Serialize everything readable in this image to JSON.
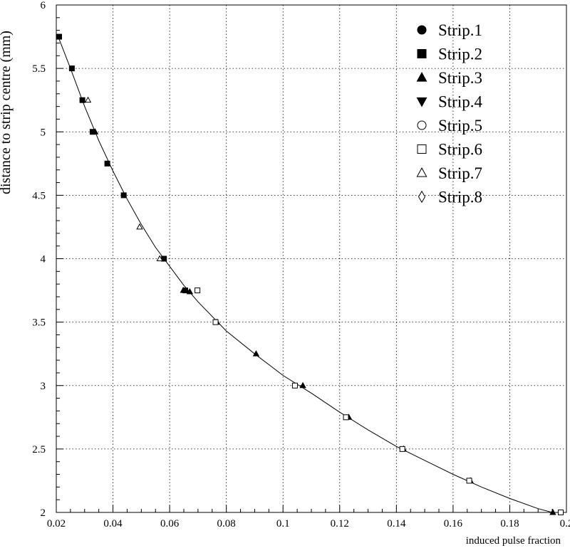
{
  "chart_data": {
    "type": "scatter",
    "xlabel": "induced pulse fraction",
    "ylabel": "distance to strip centre (mm)",
    "xlim": [
      0.02,
      0.2
    ],
    "ylim": [
      2,
      6
    ],
    "x_ticks": [
      "0.02",
      "0.04",
      "0.06",
      "0.08",
      "0.1",
      "0.12",
      "0.14",
      "0.16",
      "0.18",
      "0.2"
    ],
    "y_ticks": [
      "2",
      "2.5",
      "3",
      "3.5",
      "4",
      "4.5",
      "5",
      "5.5",
      "6"
    ],
    "grid": true,
    "legend_position": "top-right",
    "series": [
      {
        "name": "Strip.1",
        "marker": "circle-filled",
        "points": []
      },
      {
        "name": "Strip.2",
        "marker": "square-filled",
        "points": [
          {
            "x": 0.021,
            "y": 5.75
          },
          {
            "x": 0.0255,
            "y": 5.5
          },
          {
            "x": 0.0292,
            "y": 5.25
          },
          {
            "x": 0.0328,
            "y": 5.0
          },
          {
            "x": 0.038,
            "y": 4.75
          },
          {
            "x": 0.0438,
            "y": 4.5
          },
          {
            "x": 0.058,
            "y": 4.0
          },
          {
            "x": 0.0655,
            "y": 3.75
          }
        ]
      },
      {
        "name": "Strip.3",
        "marker": "triangle-up-filled",
        "points": [
          {
            "x": 0.0337,
            "y": 5.0
          },
          {
            "x": 0.0648,
            "y": 3.75
          },
          {
            "x": 0.0671,
            "y": 3.74
          },
          {
            "x": 0.0767,
            "y": 3.5
          },
          {
            "x": 0.0905,
            "y": 3.25
          },
          {
            "x": 0.107,
            "y": 3.0
          },
          {
            "x": 0.1232,
            "y": 2.75
          },
          {
            "x": 0.1425,
            "y": 2.5
          },
          {
            "x": 0.1661,
            "y": 2.25
          },
          {
            "x": 0.1952,
            "y": 2.0
          }
        ]
      },
      {
        "name": "Strip.4",
        "marker": "triangle-down-filled",
        "points": []
      },
      {
        "name": "Strip.5",
        "marker": "circle-open",
        "points": []
      },
      {
        "name": "Strip.6",
        "marker": "square-open",
        "points": [
          {
            "x": 0.0698,
            "y": 3.75
          },
          {
            "x": 0.0762,
            "y": 3.5
          },
          {
            "x": 0.1042,
            "y": 3.0
          },
          {
            "x": 0.1222,
            "y": 2.75
          },
          {
            "x": 0.1421,
            "y": 2.5
          },
          {
            "x": 0.1657,
            "y": 2.25
          },
          {
            "x": 0.198,
            "y": 2.0
          }
        ]
      },
      {
        "name": "Strip.7",
        "marker": "triangle-up-open",
        "points": [
          {
            "x": 0.0312,
            "y": 5.25
          },
          {
            "x": 0.0494,
            "y": 4.25
          },
          {
            "x": 0.0565,
            "y": 4.0
          }
        ]
      },
      {
        "name": "Strip.8",
        "marker": "diamond-open",
        "points": []
      }
    ],
    "fit_curve": [
      {
        "x": 0.0205,
        "y": 5.76
      },
      {
        "x": 0.025,
        "y": 5.5
      },
      {
        "x": 0.03,
        "y": 5.2
      },
      {
        "x": 0.035,
        "y": 4.93
      },
      {
        "x": 0.04,
        "y": 4.69
      },
      {
        "x": 0.045,
        "y": 4.47
      },
      {
        "x": 0.05,
        "y": 4.27
      },
      {
        "x": 0.055,
        "y": 4.09
      },
      {
        "x": 0.06,
        "y": 3.94
      },
      {
        "x": 0.065,
        "y": 3.79
      },
      {
        "x": 0.07,
        "y": 3.66
      },
      {
        "x": 0.08,
        "y": 3.43
      },
      {
        "x": 0.09,
        "y": 3.25
      },
      {
        "x": 0.1,
        "y": 3.08
      },
      {
        "x": 0.11,
        "y": 2.94
      },
      {
        "x": 0.12,
        "y": 2.79
      },
      {
        "x": 0.13,
        "y": 2.65
      },
      {
        "x": 0.14,
        "y": 2.52
      },
      {
        "x": 0.15,
        "y": 2.41
      },
      {
        "x": 0.16,
        "y": 2.3
      },
      {
        "x": 0.17,
        "y": 2.2
      },
      {
        "x": 0.18,
        "y": 2.11
      },
      {
        "x": 0.19,
        "y": 2.03
      },
      {
        "x": 0.195,
        "y": 2.0
      }
    ]
  }
}
